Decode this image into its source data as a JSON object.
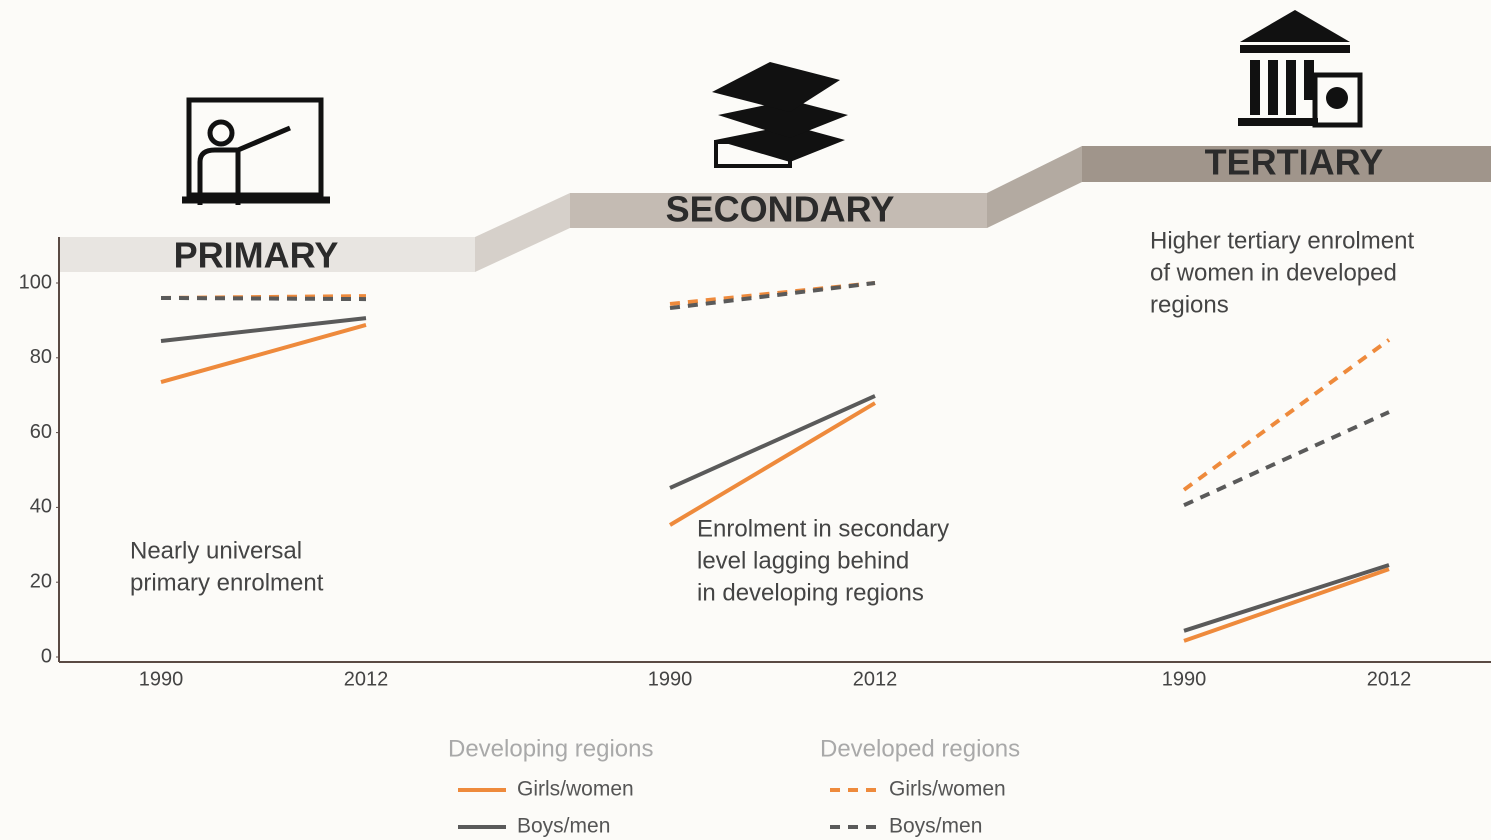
{
  "chart_data": {
    "type": "line",
    "ylim": [
      0,
      100
    ],
    "yticks": [
      0,
      20,
      40,
      60,
      80,
      100
    ],
    "x": [
      1990,
      2012
    ],
    "panels": [
      {
        "title": "PRIMARY",
        "annotation": [
          "Nearly universal",
          "primary enrolment"
        ]
      },
      {
        "title": "SECONDARY",
        "annotation": [
          "Enrolment in secondary",
          "level lagging behind",
          "in developing regions"
        ]
      },
      {
        "title": "TERTIARY",
        "annotation": [
          "Higher tertiary enrolment",
          "of women in developed",
          "regions"
        ]
      }
    ],
    "series_groups": [
      {
        "name": "Developing regions",
        "series": [
          {
            "name": "Girls/women",
            "color": "#ee8a3c",
            "linestyle": "solid",
            "values": [
              [
                73.5,
                88.8
              ],
              [
                35.3,
                67.9
              ],
              [
                4.3,
                23.5
              ]
            ]
          },
          {
            "name": "Boys/men",
            "color": "#5a5a5a",
            "linestyle": "solid",
            "values": [
              [
                84.5,
                90.6
              ],
              [
                45.2,
                69.8
              ],
              [
                7,
                24.6
              ]
            ]
          }
        ]
      },
      {
        "name": "Developed regions",
        "series": [
          {
            "name": "Girls/women",
            "color": "#ee8a3c",
            "linestyle": "dashed",
            "values": [
              [
                96,
                96.5
              ],
              [
                94.4,
                100
              ],
              [
                44.7,
                84.8
              ]
            ]
          },
          {
            "name": "Boys/men",
            "color": "#5a5a5a",
            "linestyle": "dashed",
            "values": [
              [
                96,
                95.7
              ],
              [
                93.3,
                100
              ],
              [
                40.6,
                65.5
              ]
            ]
          }
        ]
      }
    ]
  }
}
